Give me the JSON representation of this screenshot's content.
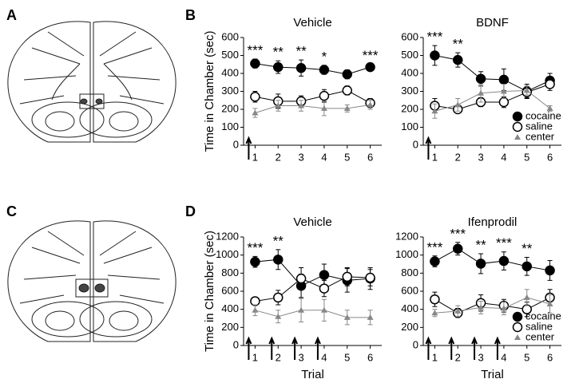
{
  "panel_labels": [
    "A",
    "B",
    "C",
    "D"
  ],
  "chart_data": [
    {
      "type": "line",
      "title": "Vehicle",
      "y_label": "Time in Chamber (sec)",
      "x": [
        1,
        2,
        3,
        4,
        5,
        6
      ],
      "xlim": [
        0.5,
        6.5
      ],
      "xticks": [
        1,
        2,
        3,
        4,
        5,
        6
      ],
      "ylim": [
        0,
        600
      ],
      "yticks": [
        0,
        100,
        200,
        300,
        400,
        500,
        600
      ],
      "series": [
        {
          "color": "#000000",
          "marker": "filled-circle",
          "values": [
            455,
            435,
            430,
            420,
            395,
            435
          ],
          "errors": [
            25,
            35,
            45,
            25,
            25,
            15
          ]
        },
        {
          "color": "#000000",
          "marker": "open-circle",
          "values": [
            270,
            245,
            245,
            275,
            305,
            235
          ],
          "errors": [
            30,
            40,
            30,
            35,
            25,
            25
          ]
        },
        {
          "color": "#888888",
          "marker": "triangle",
          "values": [
            180,
            220,
            220,
            205,
            205,
            225
          ],
          "errors": [
            25,
            30,
            30,
            40,
            20,
            25
          ]
        }
      ],
      "annotations": [
        {
          "x": 1,
          "text": "***"
        },
        {
          "x": 2,
          "text": "**"
        },
        {
          "x": 3,
          "text": "**"
        },
        {
          "x": 4,
          "text": "*"
        },
        {
          "x": 6,
          "text": "***"
        }
      ],
      "arrows_at": [
        1
      ]
    },
    {
      "type": "line",
      "title": "BDNF",
      "x": [
        1,
        2,
        3,
        4,
        5,
        6
      ],
      "xlim": [
        0.5,
        6.5
      ],
      "xticks": [
        1,
        2,
        3,
        4,
        5,
        6
      ],
      "ylim": [
        0,
        600
      ],
      "yticks": [
        0,
        100,
        200,
        300,
        400,
        500,
        600
      ],
      "series": [
        {
          "name": "cocaine",
          "color": "#000000",
          "marker": "filled-circle",
          "values": [
            500,
            475,
            370,
            365,
            300,
            360
          ],
          "errors": [
            55,
            40,
            40,
            60,
            40,
            40
          ]
        },
        {
          "name": "saline",
          "color": "#000000",
          "marker": "open-circle",
          "values": [
            220,
            200,
            240,
            240,
            295,
            340
          ],
          "errors": [
            40,
            20,
            25,
            30,
            30,
            35
          ]
        },
        {
          "name": "center",
          "color": "#888888",
          "marker": "triangle",
          "values": [
            190,
            225,
            290,
            300,
            305,
            205
          ],
          "errors": [
            40,
            35,
            50,
            40,
            25,
            15
          ]
        }
      ],
      "annotations": [
        {
          "x": 1,
          "text": "***"
        },
        {
          "x": 2,
          "text": "**"
        }
      ],
      "arrows_at": [
        1
      ],
      "legend": "lower right"
    },
    {
      "type": "line",
      "title": "Vehicle",
      "y_label": "Time in Chamber (sec)",
      "x_label": "Trial",
      "x": [
        1,
        2,
        3,
        4,
        5,
        6
      ],
      "xlim": [
        0.5,
        6.5
      ],
      "xticks": [
        1,
        2,
        3,
        4,
        5,
        6
      ],
      "ylim": [
        0,
        1200
      ],
      "yticks": [
        0,
        200,
        400,
        600,
        800,
        1000,
        1200
      ],
      "series": [
        {
          "color": "#000000",
          "marker": "filled-circle",
          "values": [
            925,
            950,
            660,
            780,
            720,
            740
          ],
          "errors": [
            60,
            110,
            130,
            120,
            130,
            120
          ]
        },
        {
          "color": "#000000",
          "marker": "open-circle",
          "values": [
            490,
            530,
            740,
            630,
            760,
            750
          ],
          "errors": [
            45,
            80,
            120,
            90,
            100,
            90
          ]
        },
        {
          "color": "#888888",
          "marker": "triangle",
          "values": [
            390,
            320,
            390,
            390,
            310,
            310
          ],
          "errors": [
            60,
            70,
            130,
            120,
            80,
            80
          ]
        }
      ],
      "annotations": [
        {
          "x": 1,
          "text": "***"
        },
        {
          "x": 2,
          "text": "**"
        }
      ],
      "arrows_at": [
        1,
        2,
        3,
        4
      ]
    },
    {
      "type": "line",
      "title": "Ifenprodil",
      "x_label": "Trial",
      "x": [
        1,
        2,
        3,
        4,
        5,
        6
      ],
      "xlim": [
        0.5,
        6.5
      ],
      "xticks": [
        1,
        2,
        3,
        4,
        5,
        6
      ],
      "ylim": [
        0,
        1200
      ],
      "yticks": [
        0,
        200,
        400,
        600,
        800,
        1000,
        1200
      ],
      "series": [
        {
          "name": "cocaine",
          "color": "#000000",
          "marker": "filled-circle",
          "values": [
            930,
            1070,
            905,
            935,
            875,
            830
          ],
          "errors": [
            60,
            70,
            110,
            100,
            100,
            110
          ]
        },
        {
          "name": "saline",
          "color": "#000000",
          "marker": "open-circle",
          "values": [
            510,
            360,
            470,
            440,
            400,
            530
          ],
          "errors": [
            80,
            50,
            90,
            70,
            80,
            90
          ]
        },
        {
          "name": "center",
          "color": "#888888",
          "marker": "triangle",
          "values": [
            360,
            380,
            420,
            410,
            530,
            460
          ],
          "errors": [
            40,
            60,
            70,
            70,
            90,
            100
          ]
        }
      ],
      "annotations": [
        {
          "x": 1,
          "text": "***"
        },
        {
          "x": 2,
          "text": "***"
        },
        {
          "x": 3,
          "text": "**"
        },
        {
          "x": 4,
          "text": "***"
        },
        {
          "x": 5,
          "text": "**"
        }
      ],
      "arrows_at": [
        1,
        2,
        3,
        4
      ],
      "legend": "lower right"
    }
  ]
}
